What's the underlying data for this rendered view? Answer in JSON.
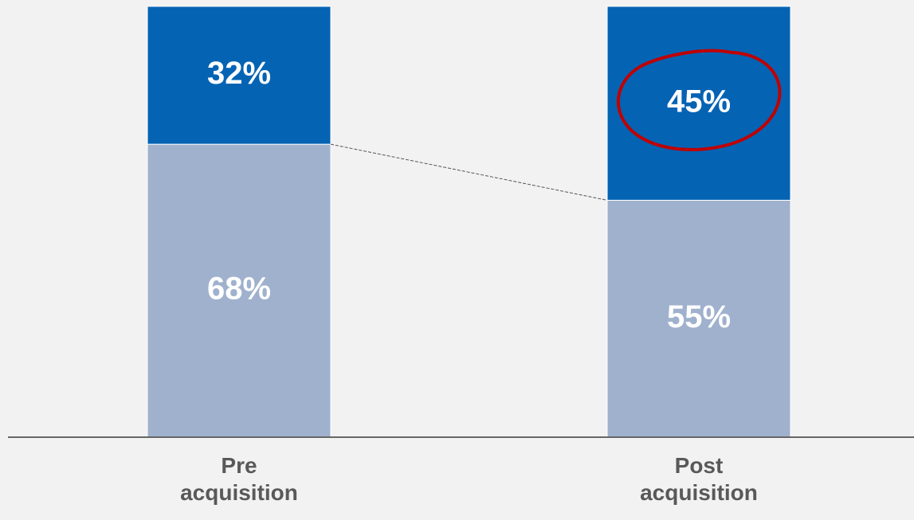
{
  "chart_data": {
    "type": "stacked_bar",
    "categories": [
      "Pre acquisition",
      "Post acquisition"
    ],
    "series": [
      {
        "color": "#9fb1cd",
        "values": [
          68,
          55
        ],
        "value_labels": [
          "68%",
          "55%"
        ]
      },
      {
        "color": "#0563b4",
        "values": [
          32,
          45
        ],
        "value_labels": [
          "32%",
          "45%"
        ]
      }
    ],
    "ylim": [
      0,
      100
    ]
  }
}
